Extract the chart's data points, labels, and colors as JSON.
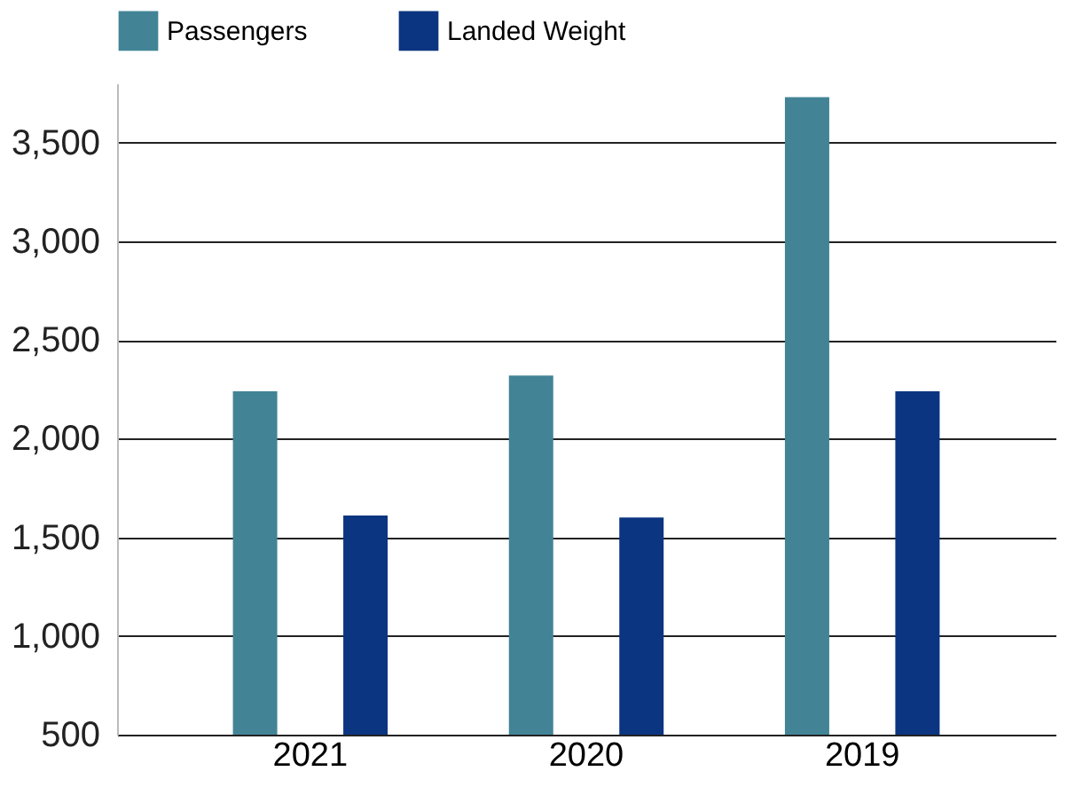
{
  "chart_data": {
    "type": "bar",
    "categories": [
      "2021",
      "2020",
      "2019"
    ],
    "series": [
      {
        "name": "Passengers",
        "color": "#428496",
        "values": [
          2240,
          2320,
          3730
        ]
      },
      {
        "name": "Landed Weight",
        "color": "#0b3580",
        "values": [
          1610,
          1600,
          2240
        ]
      }
    ],
    "ylim": [
      500,
      3800
    ],
    "yticks": [
      {
        "value": 500,
        "label": "500"
      },
      {
        "value": 1000,
        "label": "1,000"
      },
      {
        "value": 1500,
        "label": "1,500"
      },
      {
        "value": 2000,
        "label": "2,000"
      },
      {
        "value": 2500,
        "label": "2,500"
      },
      {
        "value": 3000,
        "label": "3,000"
      },
      {
        "value": 3500,
        "label": "3,500"
      }
    ],
    "grid": "y",
    "legend": "top left"
  }
}
